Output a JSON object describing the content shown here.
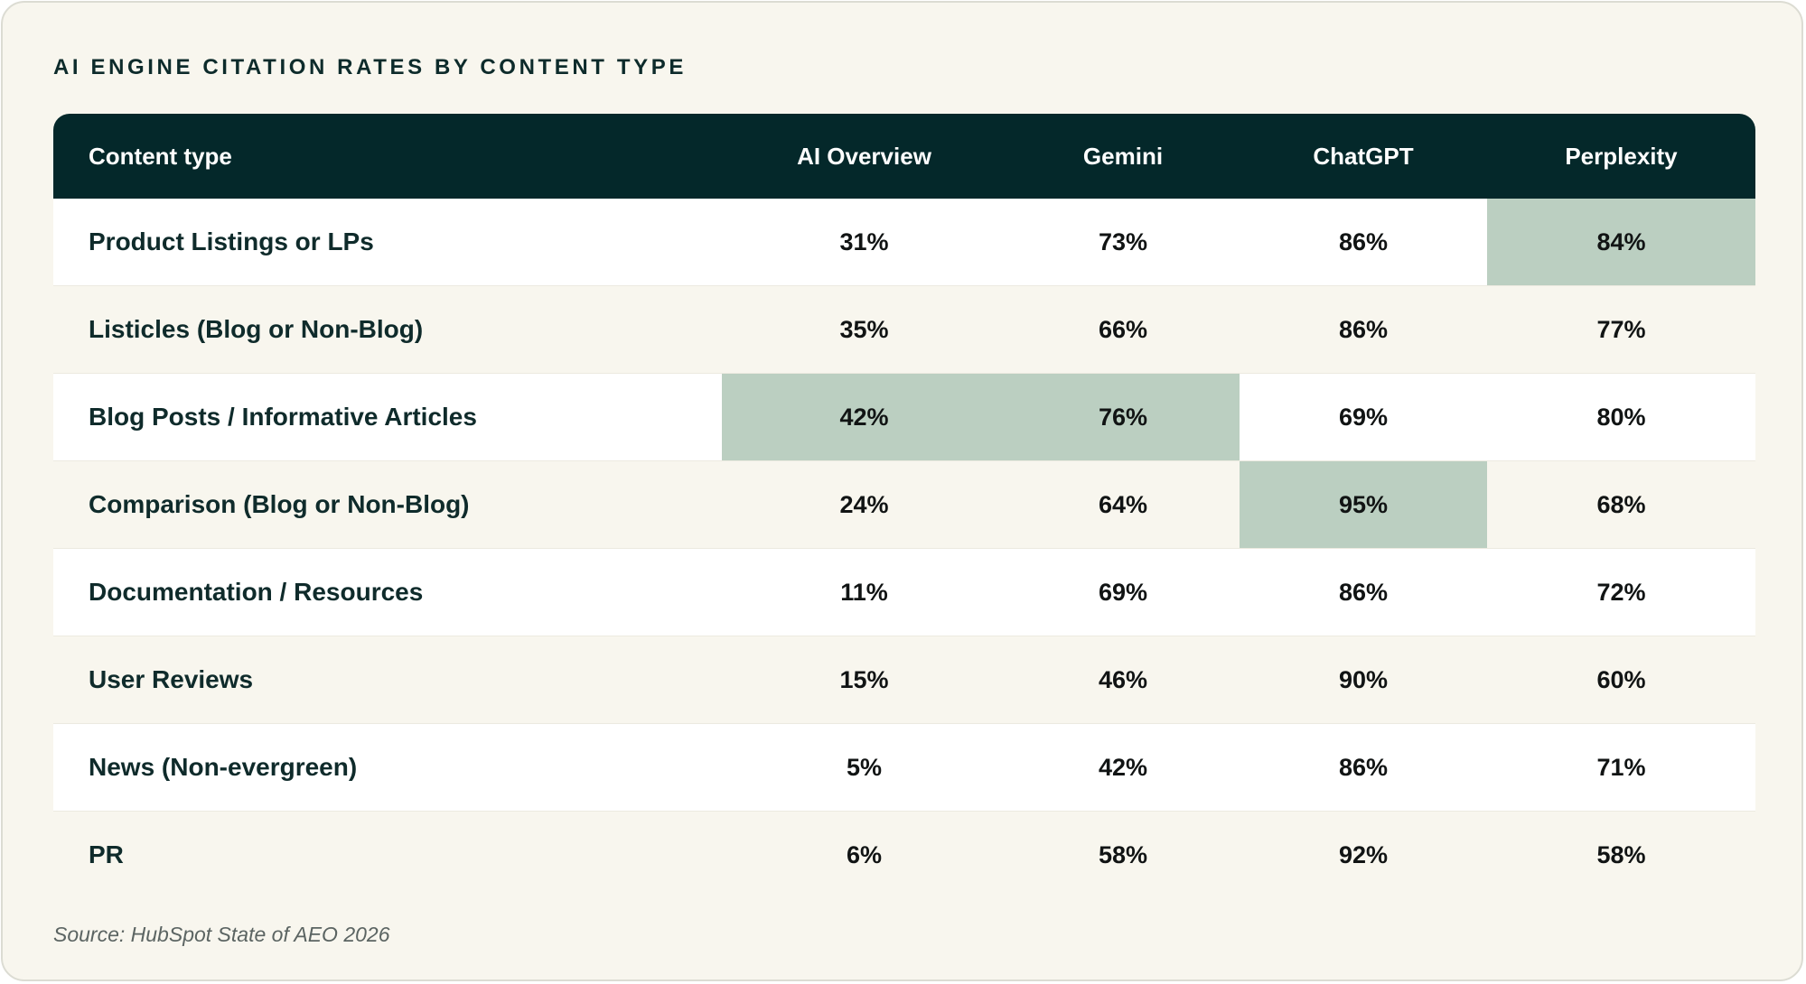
{
  "colors": {
    "background": "#f8f6ee",
    "header_bg": "#04282a",
    "header_text": "#ffffff",
    "row_alt": "#ffffff",
    "highlight": "#bbcfc1",
    "text": "#0f2b2b"
  },
  "chart_data": {
    "type": "table",
    "title": "AI ENGINE CITATION RATES BY CONTENT TYPE",
    "columns": [
      "Content type",
      "AI Overview",
      "Gemini",
      "ChatGPT",
      "Perplexity"
    ],
    "rows": [
      {
        "label": "Product Listings or LPs",
        "values": [
          "31%",
          "73%",
          "86%",
          "84%"
        ],
        "highlight": [
          false,
          false,
          false,
          true
        ]
      },
      {
        "label": "Listicles (Blog or Non-Blog)",
        "values": [
          "35%",
          "66%",
          "86%",
          "77%"
        ],
        "highlight": [
          false,
          false,
          false,
          false
        ]
      },
      {
        "label": "Blog Posts / Informative Articles",
        "values": [
          "42%",
          "76%",
          "69%",
          "80%"
        ],
        "highlight": [
          true,
          true,
          false,
          false
        ]
      },
      {
        "label": "Comparison (Blog or Non-Blog)",
        "values": [
          "24%",
          "64%",
          "95%",
          "68%"
        ],
        "highlight": [
          false,
          false,
          true,
          false
        ]
      },
      {
        "label": "Documentation / Resources",
        "values": [
          "11%",
          "69%",
          "86%",
          "72%"
        ],
        "highlight": [
          false,
          false,
          false,
          false
        ]
      },
      {
        "label": "User Reviews",
        "values": [
          "15%",
          "46%",
          "90%",
          "60%"
        ],
        "highlight": [
          false,
          false,
          false,
          false
        ]
      },
      {
        "label": "News (Non-evergreen)",
        "values": [
          "5%",
          "42%",
          "86%",
          "71%"
        ],
        "highlight": [
          false,
          false,
          false,
          false
        ]
      },
      {
        "label": "PR",
        "values": [
          "6%",
          "58%",
          "92%",
          "58%"
        ],
        "highlight": [
          false,
          false,
          false,
          false
        ]
      }
    ],
    "source": "Source: HubSpot State of AEO 2026"
  }
}
